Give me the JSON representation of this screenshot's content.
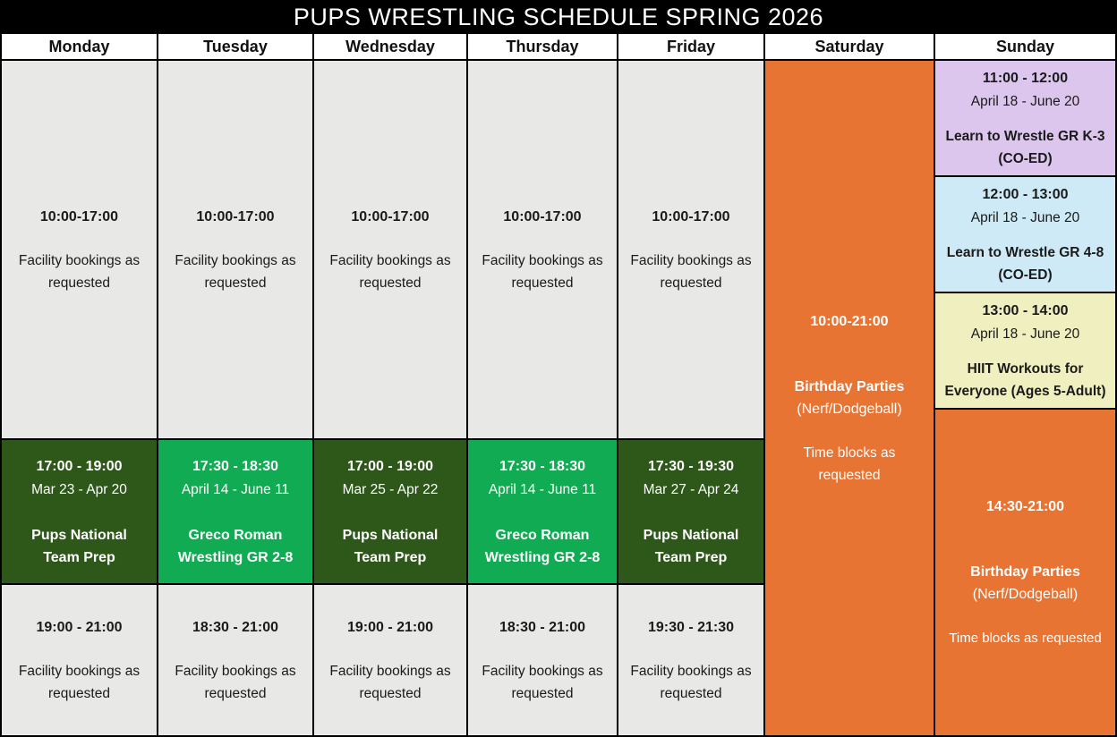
{
  "title": "PUPS WRESTLING SCHEDULE SPRING 2026",
  "colors": {
    "title_bg": "#000000",
    "grid_line": "#000000",
    "header_bg": "#ffffff",
    "facility_gray": "#e8e8e6",
    "dark_green": "#2e571a",
    "light_green": "#11ab53",
    "orange": "#e87434",
    "purple": "#dcc6ee",
    "light_blue": "#cdeaf6",
    "pale_yellow": "#f0efc0"
  },
  "days": [
    {
      "name": "Monday",
      "open": {
        "time": "10:00-17:00",
        "desc": "Facility bookings as requested"
      },
      "program": {
        "time": "17:00 - 19:00",
        "dates": "Mar 23 - Apr 20",
        "name": "Pups National Team Prep"
      },
      "close": {
        "time": "19:00 - 21:00",
        "desc": "Facility bookings as requested"
      }
    },
    {
      "name": "Tuesday",
      "open": {
        "time": "10:00-17:00",
        "desc": "Facility bookings as requested"
      },
      "program": {
        "time": "17:30 - 18:30",
        "dates": "April 14 - June 11",
        "name": "Greco Roman Wrestling GR 2-8"
      },
      "close": {
        "time": "18:30 - 21:00",
        "desc": "Facility bookings as requested"
      }
    },
    {
      "name": "Wednesday",
      "open": {
        "time": "10:00-17:00",
        "desc": "Facility bookings as requested"
      },
      "program": {
        "time": "17:00 - 19:00",
        "dates": "Mar 25 - Apr 22",
        "name": "Pups National Team Prep"
      },
      "close": {
        "time": "19:00 - 21:00",
        "desc": "Facility bookings as requested"
      }
    },
    {
      "name": "Thursday",
      "open": {
        "time": "10:00-17:00",
        "desc": "Facility bookings as requested"
      },
      "program": {
        "time": "17:30 - 18:30",
        "dates": "April 14 - June 11",
        "name": "Greco Roman Wrestling GR 2-8"
      },
      "close": {
        "time": "18:30 - 21:00",
        "desc": "Facility bookings as requested"
      }
    },
    {
      "name": "Friday",
      "open": {
        "time": "10:00-17:00",
        "desc": "Facility bookings as requested"
      },
      "program": {
        "time": "17:30 - 19:30",
        "dates": "Mar 27 - Apr 24",
        "name": "Pups National Team Prep"
      },
      "close": {
        "time": "19:30 - 21:30",
        "desc": "Facility bookings as requested"
      }
    }
  ],
  "saturday": {
    "name": "Saturday",
    "time": "10:00-21:00",
    "event": "Birthday Parties",
    "detail": "(Nerf/Dodgeball)",
    "note": "Time blocks as requested"
  },
  "sunday": {
    "name": "Sunday",
    "classes": [
      {
        "time": "11:00 - 12:00",
        "dates": "April 18 - June 20",
        "name": "Learn to Wrestle GR K-3 (CO-ED)"
      },
      {
        "time": "12:00 - 13:00",
        "dates": "April 18 - June 20",
        "name": "Learn to Wrestle GR 4-8 (CO-ED)"
      },
      {
        "time": "13:00 - 14:00",
        "dates": "April 18 - June 20",
        "name": "HIIT Workouts for Everyone (Ages 5-Adult)"
      }
    ],
    "party": {
      "time": "14:30-21:00",
      "event": "Birthday Parties",
      "detail": "(Nerf/Dodgeball)",
      "note": "Time blocks as requested"
    }
  }
}
